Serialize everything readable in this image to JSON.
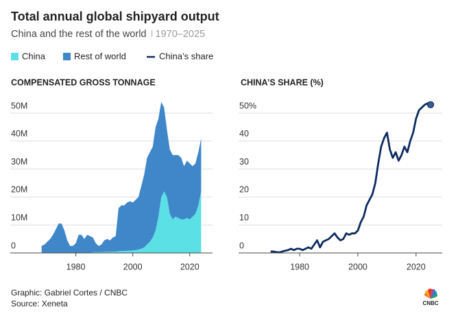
{
  "title": "Total annual global shipyard output",
  "subtitle": "China and the rest of the world",
  "subtitle_range": "1970–2025",
  "credits": [
    "Graphic: Gabriel Cortes / CNBC",
    "Source: Xeneta"
  ],
  "logo": "CNBC",
  "chart_data": [
    {
      "type": "area",
      "stacked": true,
      "title": "COMPENSATED GROSS TONNAGE",
      "x": [
        1968,
        1969,
        1970,
        1971,
        1972,
        1973,
        1974,
        1975,
        1976,
        1977,
        1978,
        1979,
        1980,
        1981,
        1982,
        1983,
        1984,
        1985,
        1986,
        1987,
        1988,
        1989,
        1990,
        1991,
        1992,
        1993,
        1994,
        1995,
        1996,
        1997,
        1998,
        1999,
        2000,
        2001,
        2002,
        2003,
        2004,
        2005,
        2006,
        2007,
        2008,
        2009,
        2010,
        2011,
        2012,
        2013,
        2014,
        2015,
        2016,
        2017,
        2018,
        2019,
        2020,
        2021,
        2022,
        2023,
        2024
      ],
      "series": [
        {
          "name": "China",
          "color": "#5be0e6",
          "values": [
            100000,
            100000,
            100000,
            100000,
            100000,
            100000,
            100000,
            100000,
            100000,
            100000,
            100000,
            100000,
            100000,
            100000,
            100000,
            100000,
            100000,
            100000,
            300000,
            300000,
            300000,
            300000,
            400000,
            400000,
            400000,
            500000,
            500000,
            600000,
            700000,
            700000,
            800000,
            800000,
            900000,
            1000000,
            1200000,
            1500000,
            2000000,
            3000000,
            4000000,
            5500000,
            8000000,
            13000000,
            20000000,
            22000000,
            20000000,
            14000000,
            12000000,
            13000000,
            12500000,
            12000000,
            12000000,
            12500000,
            12000000,
            13000000,
            14000000,
            17000000,
            22000000
          ]
        },
        {
          "name": "Rest of world",
          "color": "#3f87c8",
          "values": [
            2400000,
            2900000,
            3900000,
            4900000,
            6400000,
            8400000,
            10400000,
            10400000,
            7900000,
            4400000,
            2400000,
            2400000,
            3400000,
            6400000,
            6400000,
            4900000,
            6400000,
            5900000,
            5200000,
            3200000,
            2200000,
            2700000,
            4100000,
            4600000,
            4100000,
            5000000,
            5500000,
            15400000,
            16300000,
            16300000,
            17200000,
            17700000,
            17100000,
            18000000,
            18800000,
            22500000,
            26000000,
            31000000,
            32000000,
            32500000,
            37000000,
            35000000,
            34000000,
            30000000,
            24000000,
            23000000,
            23000000,
            22000000,
            22500000,
            22000000,
            19000000,
            20500000,
            20000000,
            18000000,
            18000000,
            19000000,
            19000000
          ]
        }
      ],
      "xlim": [
        1957,
        2028
      ],
      "xticks": [
        1980,
        2000,
        2020
      ],
      "ylim": [
        0,
        56000000
      ],
      "yticks": [
        0,
        {
          "value": 10000000,
          "label": "10M"
        },
        {
          "value": 20000000,
          "label": "20M"
        },
        {
          "value": 30000000,
          "label": "30M"
        },
        {
          "value": 40000000,
          "label": "40M"
        },
        {
          "value": 50000000,
          "label": "50M"
        }
      ],
      "grid": true
    },
    {
      "type": "line",
      "title": "CHINA’S SHARE (%)",
      "x": [
        1970,
        1971,
        1972,
        1973,
        1974,
        1975,
        1976,
        1977,
        1978,
        1979,
        1980,
        1981,
        1982,
        1983,
        1984,
        1985,
        1986,
        1987,
        1988,
        1989,
        1990,
        1991,
        1992,
        1993,
        1994,
        1995,
        1996,
        1997,
        1998,
        1999,
        2000,
        2001,
        2002,
        2003,
        2004,
        2005,
        2006,
        2007,
        2008,
        2009,
        2010,
        2011,
        2012,
        2013,
        2014,
        2015,
        2016,
        2017,
        2018,
        2019,
        2020,
        2021,
        2022,
        2023,
        2024,
        2025
      ],
      "series": [
        {
          "name": "China’s share",
          "color": "#0d2b5e",
          "values": [
            0.5,
            0.5,
            0.3,
            0.2,
            0.5,
            0.8,
            1,
            1.5,
            1,
            1.5,
            1.5,
            1,
            1.5,
            2,
            1.5,
            3,
            4.5,
            2,
            4,
            4.5,
            5,
            6,
            7,
            5.5,
            4.5,
            5,
            7,
            6.5,
            7,
            7,
            8,
            11,
            13,
            17,
            19,
            21,
            25,
            32,
            38,
            41,
            43,
            37,
            34,
            36,
            33,
            35,
            38,
            36,
            40,
            43,
            48,
            51,
            52,
            53,
            53.5,
            53
          ]
        }
      ],
      "marker_last": true,
      "xlim": [
        1959,
        2029
      ],
      "xticks": [
        1980,
        2000,
        2020
      ],
      "ylim": [
        0,
        56
      ],
      "yticks": [
        0,
        10,
        20,
        30,
        40,
        {
          "value": 50,
          "label": "50%"
        }
      ],
      "grid": true
    }
  ]
}
